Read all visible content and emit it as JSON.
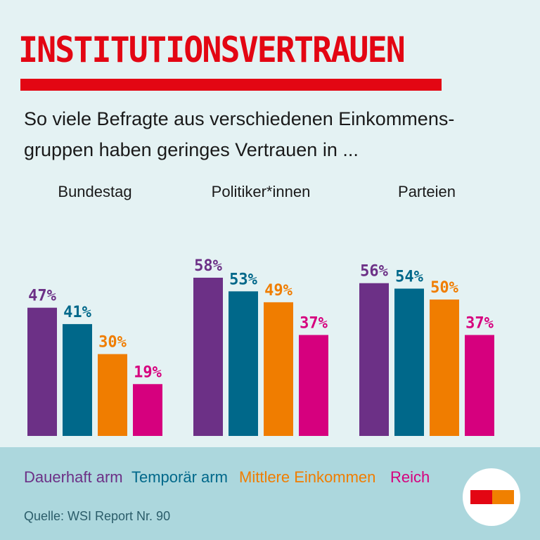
{
  "title": "INSTITUTIONSVERTRAUEN",
  "subtitle": "So viele Befragte aus verschiedenen Einkommens-gruppen haben geringes Vertrauen in ...",
  "colors": {
    "accent": "#e30613",
    "dauerhaft": "#6c3086",
    "temporaer": "#00688a",
    "mittlere": "#f07d00",
    "reich": "#d6007e"
  },
  "chart_data": {
    "type": "bar",
    "categories": [
      "Bundestag",
      "Politiker*innen",
      "Parteien"
    ],
    "series": [
      {
        "name": "Dauerhaft arm",
        "values": [
          47,
          58,
          56
        ]
      },
      {
        "name": "Temporär arm",
        "values": [
          41,
          53,
          54
        ]
      },
      {
        "name": "Mittlere Einkommen",
        "values": [
          30,
          49,
          50
        ]
      },
      {
        "name": "Reich",
        "values": [
          19,
          37,
          37
        ]
      }
    ],
    "unit": "%",
    "legend": "bottom"
  },
  "source": "Quelle: WSI Report Nr. 90"
}
